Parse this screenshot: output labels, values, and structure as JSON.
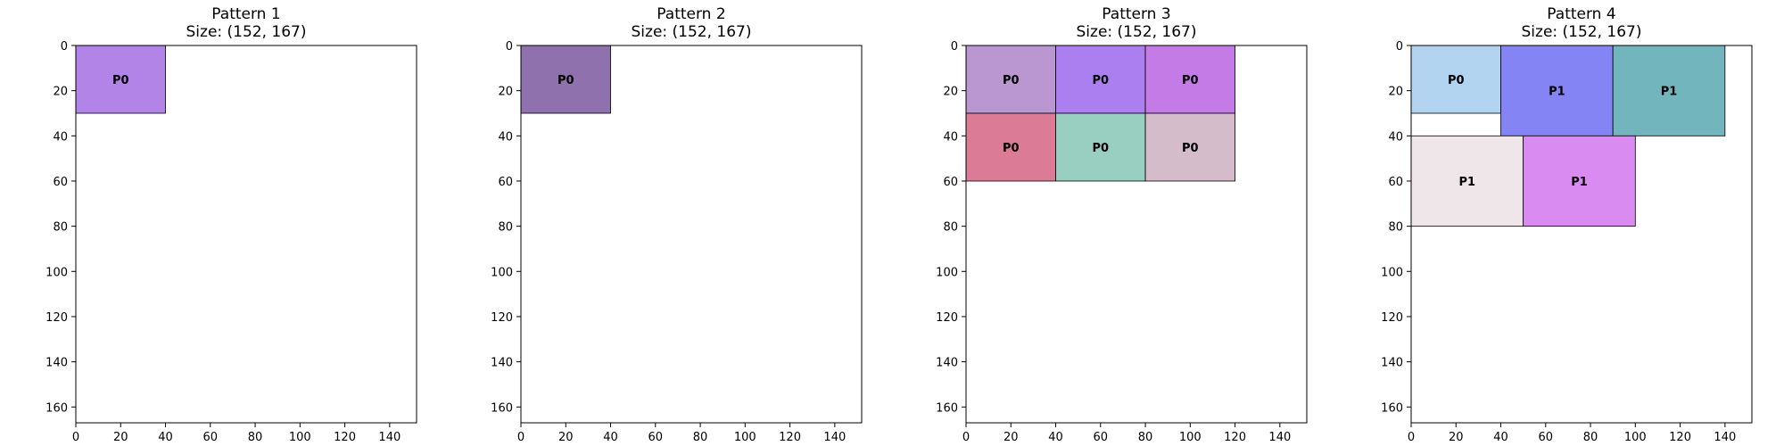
{
  "chart_data": [
    {
      "type": "rectangle-packing",
      "title": "Pattern 1",
      "subtitle": "Size: (152, 167)",
      "xlim": [
        0,
        152
      ],
      "ylim": [
        0,
        167
      ],
      "y_inverted": true,
      "xticks": [
        0,
        20,
        40,
        60,
        80,
        100,
        120,
        140
      ],
      "yticks": [
        0,
        20,
        40,
        60,
        80,
        100,
        120,
        140,
        160
      ],
      "rects": [
        {
          "label": "P0",
          "x": 0,
          "y": 0,
          "w": 40,
          "h": 30,
          "color": "#b384e8"
        }
      ]
    },
    {
      "type": "rectangle-packing",
      "title": "Pattern 2",
      "subtitle": "Size: (152, 167)",
      "xlim": [
        0,
        152
      ],
      "ylim": [
        0,
        167
      ],
      "y_inverted": true,
      "xticks": [
        0,
        20,
        40,
        60,
        80,
        100,
        120,
        140
      ],
      "yticks": [
        0,
        20,
        40,
        60,
        80,
        100,
        120,
        140,
        160
      ],
      "rects": [
        {
          "label": "P0",
          "x": 0,
          "y": 0,
          "w": 40,
          "h": 30,
          "color": "#8e71ad"
        }
      ]
    },
    {
      "type": "rectangle-packing",
      "title": "Pattern 3",
      "subtitle": "Size: (152, 167)",
      "xlim": [
        0,
        152
      ],
      "ylim": [
        0,
        167
      ],
      "y_inverted": true,
      "xticks": [
        0,
        20,
        40,
        60,
        80,
        100,
        120,
        140
      ],
      "yticks": [
        0,
        20,
        40,
        60,
        80,
        100,
        120,
        140,
        160
      ],
      "rects": [
        {
          "label": "P0",
          "x": 0,
          "y": 0,
          "w": 40,
          "h": 30,
          "color": "#bb97d2"
        },
        {
          "label": "P0",
          "x": 40,
          "y": 0,
          "w": 40,
          "h": 30,
          "color": "#ab7fef"
        },
        {
          "label": "P0",
          "x": 80,
          "y": 0,
          "w": 40,
          "h": 30,
          "color": "#c57be5"
        },
        {
          "label": "P0",
          "x": 0,
          "y": 30,
          "w": 40,
          "h": 30,
          "color": "#dc7b95"
        },
        {
          "label": "P0",
          "x": 40,
          "y": 30,
          "w": 40,
          "h": 30,
          "color": "#99cfc1"
        },
        {
          "label": "P0",
          "x": 80,
          "y": 30,
          "w": 40,
          "h": 30,
          "color": "#d5bccb"
        }
      ]
    },
    {
      "type": "rectangle-packing",
      "title": "Pattern 4",
      "subtitle": "Size: (152, 167)",
      "xlim": [
        0,
        152
      ],
      "ylim": [
        0,
        167
      ],
      "y_inverted": true,
      "xticks": [
        0,
        20,
        40,
        60,
        80,
        100,
        120,
        140
      ],
      "yticks": [
        0,
        20,
        40,
        60,
        80,
        100,
        120,
        140,
        160
      ],
      "rects": [
        {
          "label": "P0",
          "x": 0,
          "y": 0,
          "w": 40,
          "h": 30,
          "color": "#b3d4f0"
        },
        {
          "label": "P1",
          "x": 40,
          "y": 0,
          "w": 50,
          "h": 40,
          "color": "#8584f5"
        },
        {
          "label": "P1",
          "x": 90,
          "y": 0,
          "w": 50,
          "h": 40,
          "color": "#72b5bd"
        },
        {
          "label": "P1",
          "x": 0,
          "y": 40,
          "w": 50,
          "h": 40,
          "color": "#efe6ea"
        },
        {
          "label": "P1",
          "x": 50,
          "y": 40,
          "w": 50,
          "h": 40,
          "color": "#da8bf2"
        }
      ]
    }
  ]
}
